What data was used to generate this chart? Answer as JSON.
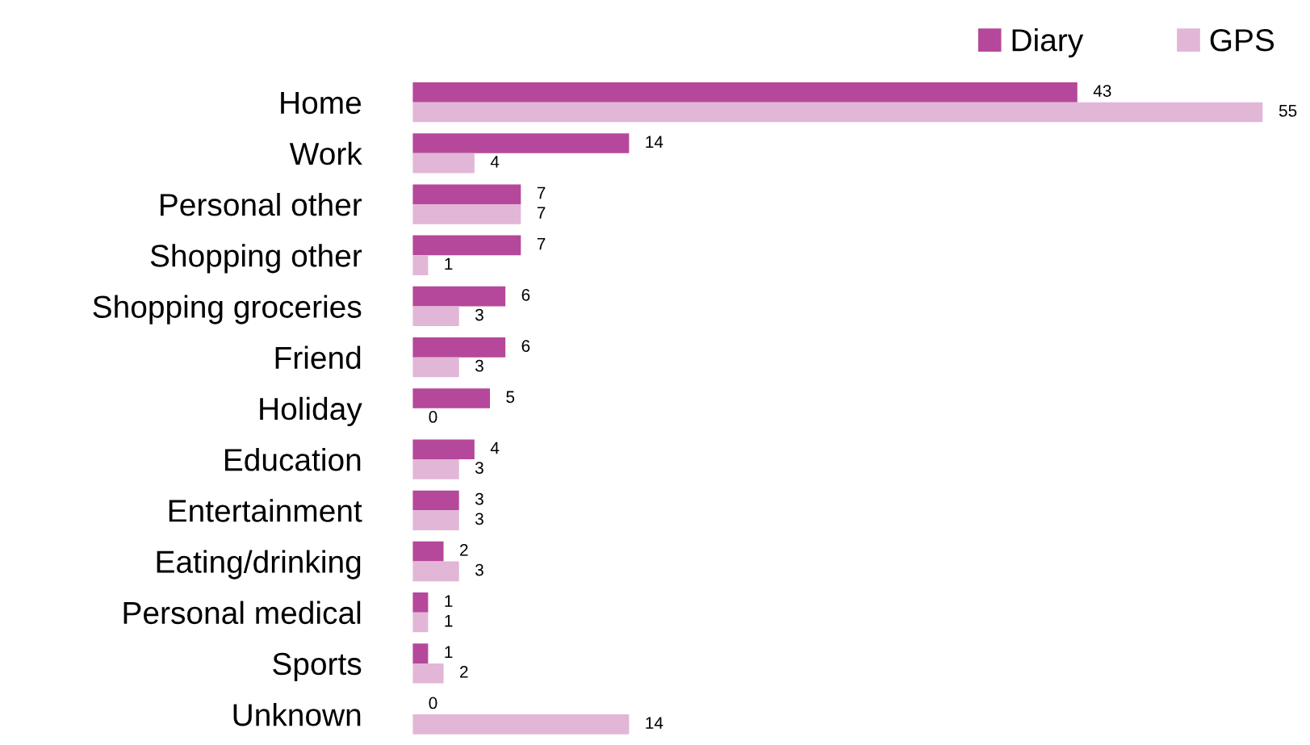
{
  "chart_data": {
    "type": "bar",
    "orientation": "horizontal",
    "data_labels": true,
    "legend": "top right",
    "grid": false,
    "categories": [
      "Home",
      "Work",
      "Personal other",
      "Shopping other",
      "Shopping groceries",
      "Friend",
      "Holiday",
      "Education",
      "Entertainment",
      "Eating/drinking",
      "Personal medical",
      "Sports",
      "Unknown"
    ],
    "series": [
      {
        "name": "Diary",
        "color": "#b5489a",
        "values": [
          43,
          14,
          7,
          7,
          6,
          6,
          5,
          4,
          3,
          2,
          1,
          1,
          0
        ]
      },
      {
        "name": "GPS",
        "color": "#e2b6d6",
        "values": [
          55,
          4,
          7,
          1,
          3,
          3,
          0,
          3,
          3,
          3,
          1,
          2,
          14
        ]
      }
    ]
  }
}
